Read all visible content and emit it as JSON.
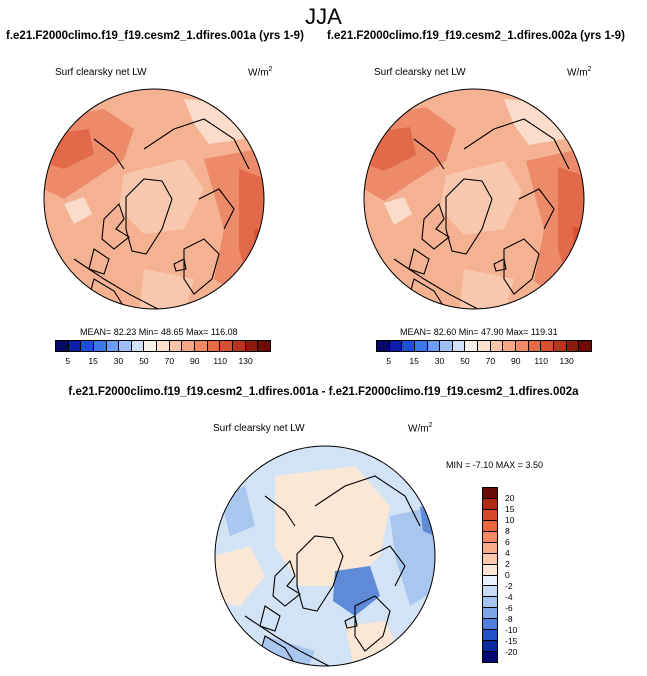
{
  "season": "JJA",
  "panel1": {
    "title": "f.e21.F2000climo.f19_f19.cesm2_1.dfires.001a (yrs 1-9)",
    "variable": "Surf clearsky net LW",
    "units": "W/m",
    "units_exp": "2",
    "stats": "MEAN=  82.23  Min=  48.65  Max= 116.08"
  },
  "panel2": {
    "title": "f.e21.F2000climo.f19_f19.cesm2_1.dfires.002a (yrs 1-9)",
    "variable": "Surf clearsky net LW",
    "units": "W/m",
    "units_exp": "2",
    "stats": "MEAN=  82.60  Min=  47.90  Max= 119.31"
  },
  "diff": {
    "title": "f.e21.F2000climo.f19_f19.cesm2_1.dfires.001a - f.e21.F2000climo.f19_f19.cesm2_1.dfires.002a",
    "variable": "Surf clearsky net LW",
    "units": "W/m",
    "units_exp": "2",
    "stats": "MIN =  -7.10 MAX =   3.50"
  },
  "colorbar_main": {
    "labels": [
      "5",
      "15",
      "30",
      "50",
      "70",
      "90",
      "110",
      "130"
    ],
    "colors": [
      "#08086b",
      "#0b1fa8",
      "#1e4fd8",
      "#3b79e6",
      "#6b9ef0",
      "#9fc0f5",
      "#cfe0f8",
      "#f7f1ea",
      "#fde0cd",
      "#f9c4a7",
      "#f6a684",
      "#f08b66",
      "#e66c48",
      "#d6502f",
      "#b8341b",
      "#8c1a0d",
      "#6b0b05"
    ]
  },
  "colorbar_diff": {
    "labels": [
      "20",
      "15",
      "10",
      "8",
      "6",
      "4",
      "2",
      "0",
      "-2",
      "-4",
      "-6",
      "-8",
      "-10",
      "-15",
      "-20"
    ],
    "colors": [
      "#6b0b05",
      "#b02a14",
      "#d6482a",
      "#e8673f",
      "#f28a62",
      "#f7ab86",
      "#fbc9aa",
      "#fde6d5",
      "#e8f0fb",
      "#c9dcf5",
      "#a5c3ef",
      "#7fa7e8",
      "#4f7fdc",
      "#2150c8",
      "#0b2aa0",
      "#050a6e"
    ]
  },
  "map_colors": {
    "ocean_base": "#f4b293",
    "warm": "#ec8a6a",
    "hot": "#e2694a",
    "hotter": "#d7532f",
    "land_light": "#f8c8ae",
    "land_pale": "#fbdcca",
    "pale_blue": "#dbe8f8",
    "diff_base": "#d3e3f6",
    "diff_cream": "#fbe7d6",
    "diff_blue": "#a9c6ee",
    "diff_darkblue": "#5f8ad8"
  }
}
